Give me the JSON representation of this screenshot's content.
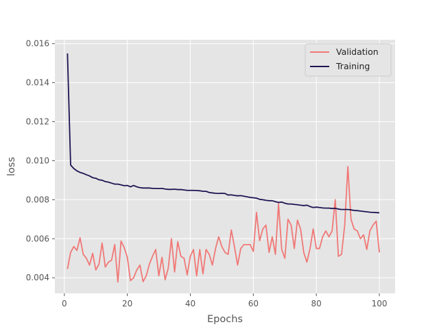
{
  "chart_data": {
    "type": "line",
    "xlabel": "Epochs",
    "ylabel": "loss",
    "xlim": [
      -3,
      105
    ],
    "ylim": [
      0.0032,
      0.0162
    ],
    "x_ticks": [
      0,
      20,
      40,
      60,
      80,
      100
    ],
    "y_ticks": [
      0.004,
      0.006,
      0.008,
      0.01,
      0.012,
      0.014,
      0.016
    ],
    "y_tick_labels": [
      "0.004",
      "0.006",
      "0.008",
      "0.010",
      "0.012",
      "0.014",
      "0.016"
    ],
    "grid": true,
    "legend_position": "top-right",
    "series": [
      {
        "name": "Validation",
        "color": "#f07876",
        "x": [
          1,
          2,
          3,
          4,
          5,
          6,
          7,
          8,
          9,
          10,
          11,
          12,
          13,
          14,
          15,
          16,
          17,
          18,
          19,
          20,
          21,
          22,
          23,
          24,
          25,
          26,
          27,
          28,
          29,
          30,
          31,
          32,
          33,
          34,
          35,
          36,
          37,
          38,
          39,
          40,
          41,
          42,
          43,
          44,
          45,
          46,
          47,
          48,
          49,
          50,
          51,
          52,
          53,
          54,
          55,
          56,
          57,
          58,
          59,
          60,
          61,
          62,
          63,
          64,
          65,
          66,
          67,
          68,
          69,
          70,
          71,
          72,
          73,
          74,
          75,
          76,
          77,
          78,
          79,
          80,
          81,
          82,
          83,
          84,
          85,
          86,
          87,
          88,
          89,
          90,
          91,
          92,
          93,
          94,
          95,
          96,
          97,
          98,
          99,
          100
        ],
        "values": [
          0.00445,
          0.0053,
          0.0056,
          0.0054,
          0.00605,
          0.0052,
          0.005,
          0.00465,
          0.00525,
          0.0044,
          0.0047,
          0.00578,
          0.00455,
          0.0048,
          0.0049,
          0.0057,
          0.00378,
          0.00588,
          0.00555,
          0.00505,
          0.00385,
          0.004,
          0.0044,
          0.00465,
          0.0038,
          0.0041,
          0.0047,
          0.0051,
          0.00545,
          0.0041,
          0.00505,
          0.0039,
          0.0045,
          0.006,
          0.0043,
          0.00585,
          0.0051,
          0.005,
          0.00415,
          0.0051,
          0.00545,
          0.0041,
          0.00545,
          0.0042,
          0.00545,
          0.0052,
          0.00465,
          0.0055,
          0.0061,
          0.0056,
          0.0053,
          0.0052,
          0.00645,
          0.0056,
          0.00465,
          0.0055,
          0.0057,
          0.0057,
          0.0057,
          0.00535,
          0.00735,
          0.0059,
          0.0065,
          0.0067,
          0.0053,
          0.0061,
          0.0052,
          0.0078,
          0.00545,
          0.005,
          0.007,
          0.0067,
          0.0055,
          0.00695,
          0.0065,
          0.0053,
          0.0048,
          0.0055,
          0.0065,
          0.0055,
          0.0055,
          0.0061,
          0.0064,
          0.0061,
          0.0064,
          0.008,
          0.0051,
          0.0052,
          0.0067,
          0.0097,
          0.007,
          0.0065,
          0.0064,
          0.006,
          0.0062,
          0.00545,
          0.0064,
          0.0067,
          0.0069,
          0.0053
        ]
      },
      {
        "name": "Training",
        "color": "#1c1452",
        "x": [
          1,
          2,
          3,
          4,
          5,
          6,
          7,
          8,
          9,
          10,
          11,
          12,
          13,
          14,
          15,
          16,
          17,
          18,
          19,
          20,
          21,
          22,
          23,
          24,
          25,
          26,
          27,
          28,
          29,
          30,
          31,
          32,
          33,
          34,
          35,
          36,
          37,
          38,
          39,
          40,
          41,
          42,
          43,
          44,
          45,
          46,
          47,
          48,
          49,
          50,
          51,
          52,
          53,
          54,
          55,
          56,
          57,
          58,
          59,
          60,
          61,
          62,
          63,
          64,
          65,
          66,
          67,
          68,
          69,
          70,
          71,
          72,
          73,
          74,
          75,
          76,
          77,
          78,
          79,
          80,
          81,
          82,
          83,
          84,
          85,
          86,
          87,
          88,
          89,
          90,
          91,
          92,
          93,
          94,
          95,
          96,
          97,
          98,
          99,
          100
        ],
        "values": [
          0.0155,
          0.00978,
          0.0096,
          0.00948,
          0.0094,
          0.00935,
          0.00928,
          0.00922,
          0.00913,
          0.0091,
          0.00902,
          0.009,
          0.00893,
          0.0089,
          0.00885,
          0.0088,
          0.0088,
          0.00876,
          0.00872,
          0.00873,
          0.00866,
          0.00873,
          0.00866,
          0.00862,
          0.0086,
          0.0086,
          0.0086,
          0.00858,
          0.00858,
          0.00857,
          0.00858,
          0.00855,
          0.00853,
          0.00853,
          0.00854,
          0.00852,
          0.00852,
          0.0085,
          0.00848,
          0.00848,
          0.00848,
          0.00847,
          0.00846,
          0.00843,
          0.00843,
          0.00837,
          0.00835,
          0.00833,
          0.00832,
          0.00833,
          0.00832,
          0.00824,
          0.00825,
          0.00822,
          0.0082,
          0.00821,
          0.00818,
          0.00815,
          0.00812,
          0.0081,
          0.00808,
          0.00802,
          0.008,
          0.00797,
          0.00795,
          0.00795,
          0.0079,
          0.00786,
          0.00788,
          0.00782,
          0.00778,
          0.00778,
          0.00776,
          0.00774,
          0.00772,
          0.0077,
          0.00772,
          0.00765,
          0.0076,
          0.00762,
          0.0076,
          0.00758,
          0.00757,
          0.00757,
          0.00755,
          0.00756,
          0.00752,
          0.0075,
          0.0075,
          0.0075,
          0.00748,
          0.00745,
          0.00744,
          0.00742,
          0.0074,
          0.00738,
          0.00736,
          0.00735,
          0.00734,
          0.00733
        ]
      }
    ]
  }
}
